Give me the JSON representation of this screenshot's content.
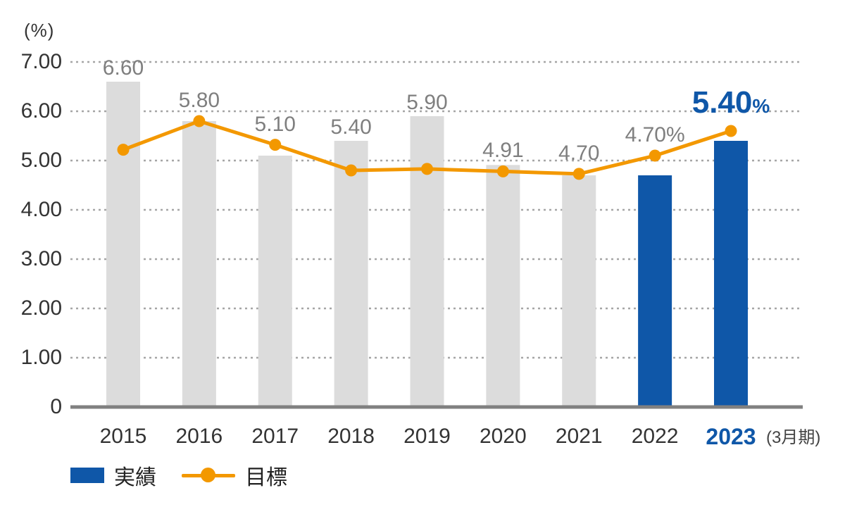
{
  "colors": {
    "blue": "#0f57a8",
    "orange": "#f39800",
    "gray_bar": "#dcdcdc",
    "grid": "#a6a6a6",
    "baseline": "#808080",
    "value_label_gray": "#7f7f7f",
    "axis_text": "#333333"
  },
  "y_axis": {
    "unit_label": "(%)",
    "ticks": [
      "0",
      "1.00",
      "2.00",
      "3.00",
      "4.00",
      "5.00",
      "6.00",
      "7.00"
    ]
  },
  "x_axis": {
    "note": "(3月期)"
  },
  "legend": [
    {
      "label": "実績",
      "swatch": "bar"
    },
    {
      "label": "目標",
      "swatch": "line-dot"
    }
  ],
  "chart_data": {
    "type": "bar+line",
    "title": "",
    "xlabel": "",
    "ylabel": "(%)",
    "ylim": [
      0,
      7
    ],
    "grid": "horizontal-dotted",
    "legend_position": "bottom-left",
    "categories": [
      "2015",
      "2016",
      "2017",
      "2018",
      "2019",
      "2020",
      "2021",
      "2022",
      "2023"
    ],
    "highlight_index": 8,
    "series": [
      {
        "name": "実績",
        "type": "bar",
        "values": [
          6.6,
          5.8,
          5.1,
          5.4,
          5.9,
          4.91,
          4.7,
          4.7,
          5.4
        ],
        "labels": [
          "6.60",
          "5.80",
          "5.10",
          "5.40",
          "5.90",
          "4.91",
          "4.70",
          "4.70%",
          "5.40%"
        ],
        "bar_colors": [
          "gray",
          "gray",
          "gray",
          "gray",
          "gray",
          "gray",
          "gray",
          "blue",
          "blue"
        ]
      },
      {
        "name": "目標",
        "type": "line",
        "values": [
          5.22,
          5.8,
          5.32,
          4.8,
          4.83,
          4.78,
          4.73,
          5.1,
          5.6
        ]
      }
    ]
  }
}
